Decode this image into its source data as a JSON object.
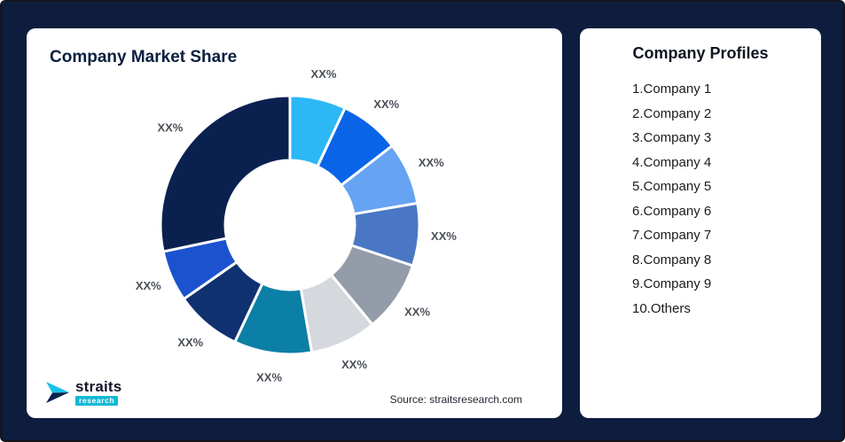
{
  "theme": {
    "background": "#0E1C3E",
    "card_background": "#FFFFFF",
    "title_color": "#0B1F3F",
    "slice_label_color": "#4B5058",
    "logo_accent": "#12B9D5"
  },
  "market_share_card": {
    "title": "Company Market Share",
    "source": "Source: straitsresearch.com",
    "logo": {
      "brand": "straits",
      "sub": "research"
    }
  },
  "profiles_card": {
    "title": "Company Profiles",
    "items": [
      "1.Company 1",
      "2.Company 2",
      "3.Company 3",
      "4.Company 4",
      "5.Company 5",
      "6.Company 6",
      "7.Company 7",
      "8.Company 8",
      "9.Company 9",
      "10.Others"
    ]
  },
  "chart_data": {
    "type": "pie",
    "subtype": "donut",
    "title": "Company Market Share",
    "start_angle_deg": 0,
    "direction": "clockwise",
    "inner_radius_ratio": 0.5,
    "legend_position": "none",
    "segments": [
      {
        "name": "Company 1",
        "label": "XX%",
        "value": 7.0,
        "color": "#2CB7F5"
      },
      {
        "name": "Company 2",
        "label": "XX%",
        "value": 7.5,
        "color": "#0A64E8"
      },
      {
        "name": "Company 3",
        "label": "XX%",
        "value": 7.8,
        "color": "#66A3F2"
      },
      {
        "name": "Company 4",
        "label": "XX%",
        "value": 7.8,
        "color": "#4A77C4"
      },
      {
        "name": "Company 5",
        "label": "XX%",
        "value": 8.9,
        "color": "#939CA8"
      },
      {
        "name": "Company 6",
        "label": "XX%",
        "value": 8.3,
        "color": "#D5D8DD"
      },
      {
        "name": "Company 7",
        "label": "XX%",
        "value": 9.7,
        "color": "#0C7FA6"
      },
      {
        "name": "Company 8",
        "label": "XX%",
        "value": 8.3,
        "color": "#10316F"
      },
      {
        "name": "Company 9",
        "label": "XX%",
        "value": 6.4,
        "color": "#1C52CE"
      },
      {
        "name": "Others",
        "label": "XX%",
        "value": 28.3,
        "color": "#0A2150"
      }
    ]
  }
}
